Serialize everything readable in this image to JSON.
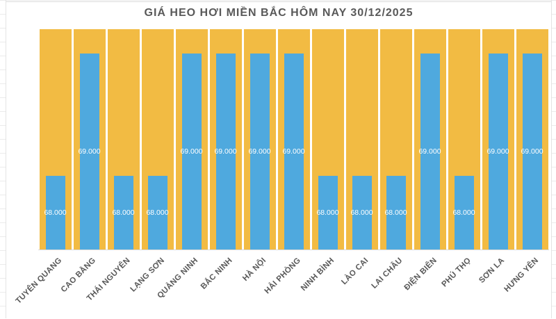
{
  "chart_data": {
    "type": "bar",
    "title": "GIÁ HEO HƠI MIỀN BẮC HÔM NAY 30/12/2025",
    "categories": [
      "TUYÊN QUANG",
      "CAO BẰNG",
      "THÁI NGUYÊN",
      "LẠNG SƠN",
      "QUẢNG NINH",
      "BẮC NINH",
      "HÀ NỘI",
      "HẢI PHÒNG",
      "NINH BÌNH",
      "LÀO CAI",
      "LAI CHÂU",
      "ĐIỆN BIÊN",
      "PHÚ THỌ",
      "SƠN LA",
      "HƯNG YÊN"
    ],
    "values": [
      68000,
      69000,
      68000,
      68000,
      69000,
      69000,
      69000,
      69000,
      68000,
      68000,
      68000,
      69000,
      68000,
      69000,
      69000
    ],
    "display_values": [
      "68.000",
      "69.000",
      "68.000",
      "68.000",
      "69.000",
      "69.000",
      "69.000",
      "69.000",
      "68.000",
      "68.000",
      "68.000",
      "69.000",
      "68.000",
      "69.000",
      "69.000"
    ],
    "xlabel": "",
    "ylabel": "",
    "ylim": [
      67400,
      69200
    ],
    "grid": false,
    "legend_position": "none",
    "value_labels_position": "inside-center",
    "colors": {
      "bar": "#4FA9DE",
      "plot_background": "#F2BB43",
      "column_gap": "#F4F1E9",
      "value_label": "#FFFFFF",
      "title_text": "#595959",
      "axis_label_text": "#595959",
      "sheet_gridline": "#E3E3E3"
    }
  }
}
